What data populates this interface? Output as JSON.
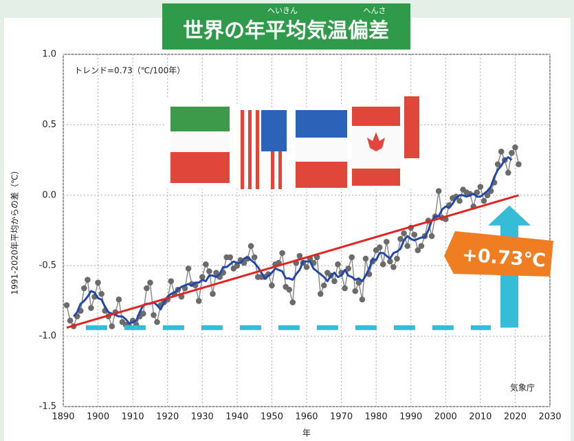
{
  "chart_data": {
    "type": "line",
    "title": "世界の年平均気温偏差",
    "title_ruby": [
      "へいきん",
      "へんさ"
    ],
    "annotation": "トレンド=0.73（℃/100年）",
    "callout": "+0.73℃",
    "source": "気象庁",
    "x_label": "年",
    "y_label": "1991-2020年平均からの差（℃）",
    "xlim": [
      1890,
      2030
    ],
    "xticks": [
      1890,
      1900,
      1910,
      1920,
      1930,
      1940,
      1950,
      1960,
      1970,
      1980,
      1990,
      2000,
      2010,
      2020,
      2030
    ],
    "ylim": [
      -1.5,
      1.0
    ],
    "yticks": [
      -1.5,
      {
        "value": -1,
        "label": "-1.0"
      },
      -0.5,
      {
        "value": 0,
        "label": "0.0"
      },
      0.5,
      {
        "value": 1,
        "label": "1.0"
      }
    ],
    "grid": true,
    "x": [
      1891,
      1892,
      1893,
      1894,
      1895,
      1896,
      1897,
      1898,
      1899,
      1900,
      1901,
      1902,
      1903,
      1904,
      1905,
      1906,
      1907,
      1908,
      1909,
      1910,
      1911,
      1912,
      1913,
      1914,
      1915,
      1916,
      1917,
      1918,
      1919,
      1920,
      1921,
      1922,
      1923,
      1924,
      1925,
      1926,
      1927,
      1928,
      1929,
      1930,
      1931,
      1932,
      1933,
      1934,
      1935,
      1936,
      1937,
      1938,
      1939,
      1940,
      1941,
      1942,
      1943,
      1944,
      1945,
      1946,
      1947,
      1948,
      1949,
      1950,
      1951,
      1952,
      1953,
      1954,
      1955,
      1956,
      1957,
      1958,
      1959,
      1960,
      1961,
      1962,
      1963,
      1964,
      1965,
      1966,
      1967,
      1968,
      1969,
      1970,
      1971,
      1972,
      1973,
      1974,
      1975,
      1976,
      1977,
      1978,
      1979,
      1980,
      1981,
      1982,
      1983,
      1984,
      1985,
      1986,
      1987,
      1988,
      1989,
      1990,
      1991,
      1992,
      1993,
      1994,
      1995,
      1996,
      1997,
      1998,
      1999,
      2000,
      2001,
      2002,
      2003,
      2004,
      2005,
      2006,
      2007,
      2008,
      2009,
      2010,
      2011,
      2012,
      2013,
      2014,
      2015,
      2016,
      2017,
      2018,
      2019,
      2020,
      2021
    ],
    "series": [
      {
        "color": "#6b6b6b",
        "values": [
          -0.78,
          -0.89,
          -0.93,
          -0.86,
          -0.82,
          -0.66,
          -0.6,
          -0.8,
          -0.72,
          -0.62,
          -0.7,
          -0.82,
          -0.86,
          -0.93,
          -0.83,
          -0.74,
          -0.9,
          -0.92,
          -0.93,
          -0.89,
          -0.92,
          -0.86,
          -0.84,
          -0.66,
          -0.62,
          -0.85,
          -0.9,
          -0.78,
          -0.76,
          -0.74,
          -0.61,
          -0.7,
          -0.67,
          -0.72,
          -0.66,
          -0.52,
          -0.63,
          -0.64,
          -0.75,
          -0.58,
          -0.49,
          -0.54,
          -0.7,
          -0.55,
          -0.58,
          -0.55,
          -0.44,
          -0.44,
          -0.52,
          -0.5,
          -0.46,
          -0.48,
          -0.45,
          -0.36,
          -0.44,
          -0.58,
          -0.58,
          -0.58,
          -0.56,
          -0.64,
          -0.49,
          -0.48,
          -0.41,
          -0.65,
          -0.67,
          -0.76,
          -0.48,
          -0.43,
          -0.48,
          -0.51,
          -0.45,
          -0.48,
          -0.44,
          -0.7,
          -0.64,
          -0.55,
          -0.57,
          -0.61,
          -0.49,
          -0.55,
          -0.66,
          -0.52,
          -0.44,
          -0.68,
          -0.62,
          -0.74,
          -0.45,
          -0.56,
          -0.47,
          -0.39,
          -0.37,
          -0.49,
          -0.33,
          -0.47,
          -0.51,
          -0.45,
          -0.31,
          -0.27,
          -0.36,
          -0.23,
          -0.28,
          -0.39,
          -0.36,
          -0.29,
          -0.18,
          -0.29,
          -0.15,
          0.03,
          -0.16,
          -0.17,
          -0.07,
          -0.02,
          -0.01,
          -0.04,
          0.04,
          0.02,
          0.01,
          -0.08,
          0.02,
          0.06,
          -0.04,
          0.0,
          0.03,
          0.09,
          0.22,
          0.31,
          0.25,
          0.16,
          0.3,
          0.34,
          0.22
        ]
      },
      {
        "color": "#2448a8",
        "values": [
          null,
          null,
          -0.86,
          -0.83,
          -0.77,
          -0.75,
          -0.72,
          -0.68,
          -0.69,
          -0.73,
          -0.74,
          -0.79,
          -0.83,
          -0.84,
          -0.85,
          -0.86,
          -0.86,
          -0.88,
          -0.91,
          -0.9,
          -0.89,
          -0.83,
          -0.78,
          -0.77,
          -0.77,
          -0.76,
          -0.78,
          -0.81,
          -0.76,
          -0.72,
          -0.7,
          -0.69,
          -0.67,
          -0.65,
          -0.64,
          -0.63,
          -0.64,
          -0.62,
          -0.62,
          -0.6,
          -0.61,
          -0.57,
          -0.57,
          -0.58,
          -0.56,
          -0.51,
          -0.51,
          -0.49,
          -0.47,
          -0.48,
          -0.48,
          -0.45,
          -0.44,
          -0.46,
          -0.48,
          -0.51,
          -0.55,
          -0.59,
          -0.57,
          -0.55,
          -0.52,
          -0.53,
          -0.54,
          -0.59,
          -0.59,
          -0.6,
          -0.56,
          -0.53,
          -0.47,
          -0.47,
          -0.47,
          -0.52,
          -0.54,
          -0.56,
          -0.58,
          -0.61,
          -0.57,
          -0.55,
          -0.58,
          -0.57,
          -0.53,
          -0.57,
          -0.58,
          -0.6,
          -0.59,
          -0.61,
          -0.57,
          -0.52,
          -0.45,
          -0.46,
          -0.41,
          -0.41,
          -0.43,
          -0.45,
          -0.41,
          -0.4,
          -0.38,
          -0.32,
          -0.29,
          -0.31,
          -0.32,
          -0.31,
          -0.3,
          -0.3,
          -0.25,
          -0.18,
          -0.15,
          -0.15,
          -0.1,
          -0.08,
          -0.09,
          -0.06,
          -0.02,
          0.0,
          0.0,
          -0.01,
          0.0,
          0.01,
          -0.01,
          -0.01,
          0.01,
          0.03,
          0.06,
          0.13,
          0.18,
          0.21,
          0.25,
          0.27,
          0.25,
          null,
          null
        ]
      }
    ],
    "trend": {
      "color": "#e32222",
      "x": [
        1891,
        2021
      ],
      "values": [
        -0.94,
        0.0
      ]
    }
  }
}
